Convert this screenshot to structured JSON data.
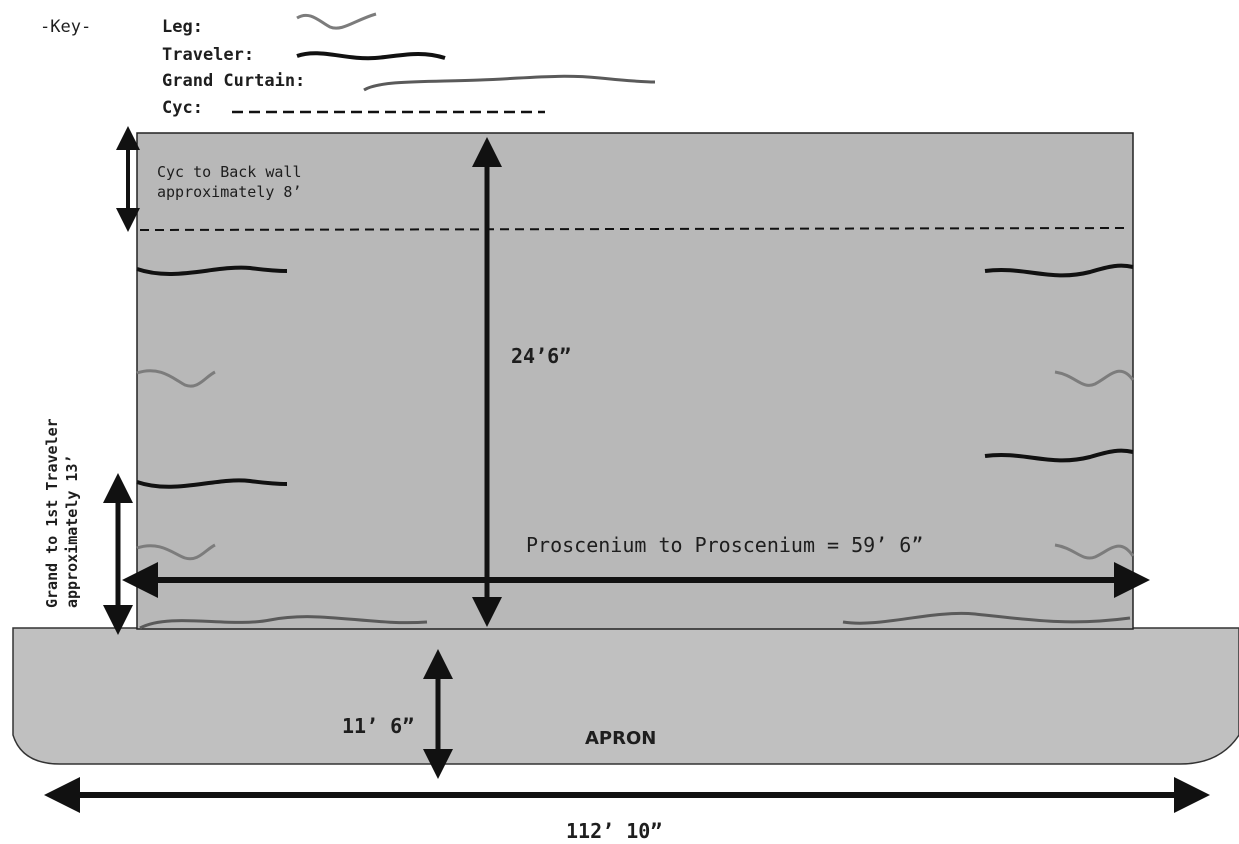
{
  "key": {
    "title": "-Key-",
    "items": [
      {
        "label": "Leg:",
        "style": "leg"
      },
      {
        "label": "Traveler:",
        "style": "traveler"
      },
      {
        "label": "Grand Curtain:",
        "style": "grand"
      },
      {
        "label": "Cyc:",
        "style": "cyc"
      }
    ]
  },
  "dimensions": {
    "cyc_to_back": [
      "Cyc to Back wall",
      "approximately 8’"
    ],
    "depth": "24’6”",
    "grand_to_traveler": [
      "Grand to 1st Traveler",
      "approximately 13’"
    ],
    "proscenium": "Proscenium to Proscenium = 59’ 6”",
    "apron_depth": "11’ 6”",
    "apron_label": "APRON",
    "total_width": "112’ 10”"
  },
  "colors": {
    "stage": "#b8b8b8",
    "apron": "#c0c0c0",
    "ink": "#111111",
    "leg": "#7c7c7c",
    "grand": "#5a5a5a"
  }
}
